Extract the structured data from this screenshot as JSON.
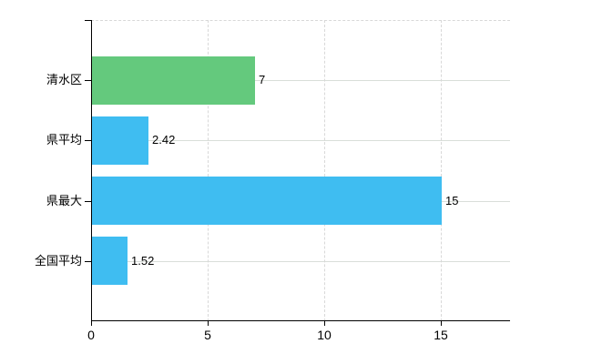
{
  "chart_data": {
    "type": "bar",
    "orientation": "horizontal",
    "title": "",
    "xlabel": "",
    "ylabel": "",
    "categories": [
      "清水区",
      "県平均",
      "県最大",
      "全国平均"
    ],
    "values": [
      7,
      2.42,
      15,
      1.52
    ],
    "value_labels": [
      "7",
      "2.42",
      "15",
      "1.52"
    ],
    "bar_colors": [
      "#64c97d",
      "#3fbdf1",
      "#3fbdf1",
      "#3fbdf1"
    ],
    "xlim": [
      0,
      17.95
    ],
    "x_ticks": [
      0,
      5,
      10,
      15
    ],
    "x_tick_labels": [
      "0",
      "5",
      "10",
      "15"
    ],
    "grid_horizontal": "solid",
    "grid_vertical": "dashed",
    "legend": false
  },
  "colors": {
    "background": "#ffffff",
    "axis": "#000000",
    "h_gridline": "#d9ded9",
    "v_gridline": "#d8d8d8",
    "top_border": "#d8d8d8",
    "label_text": "#000000",
    "bar_green": "#64c97d",
    "bar_blue": "#3fbdf1"
  }
}
